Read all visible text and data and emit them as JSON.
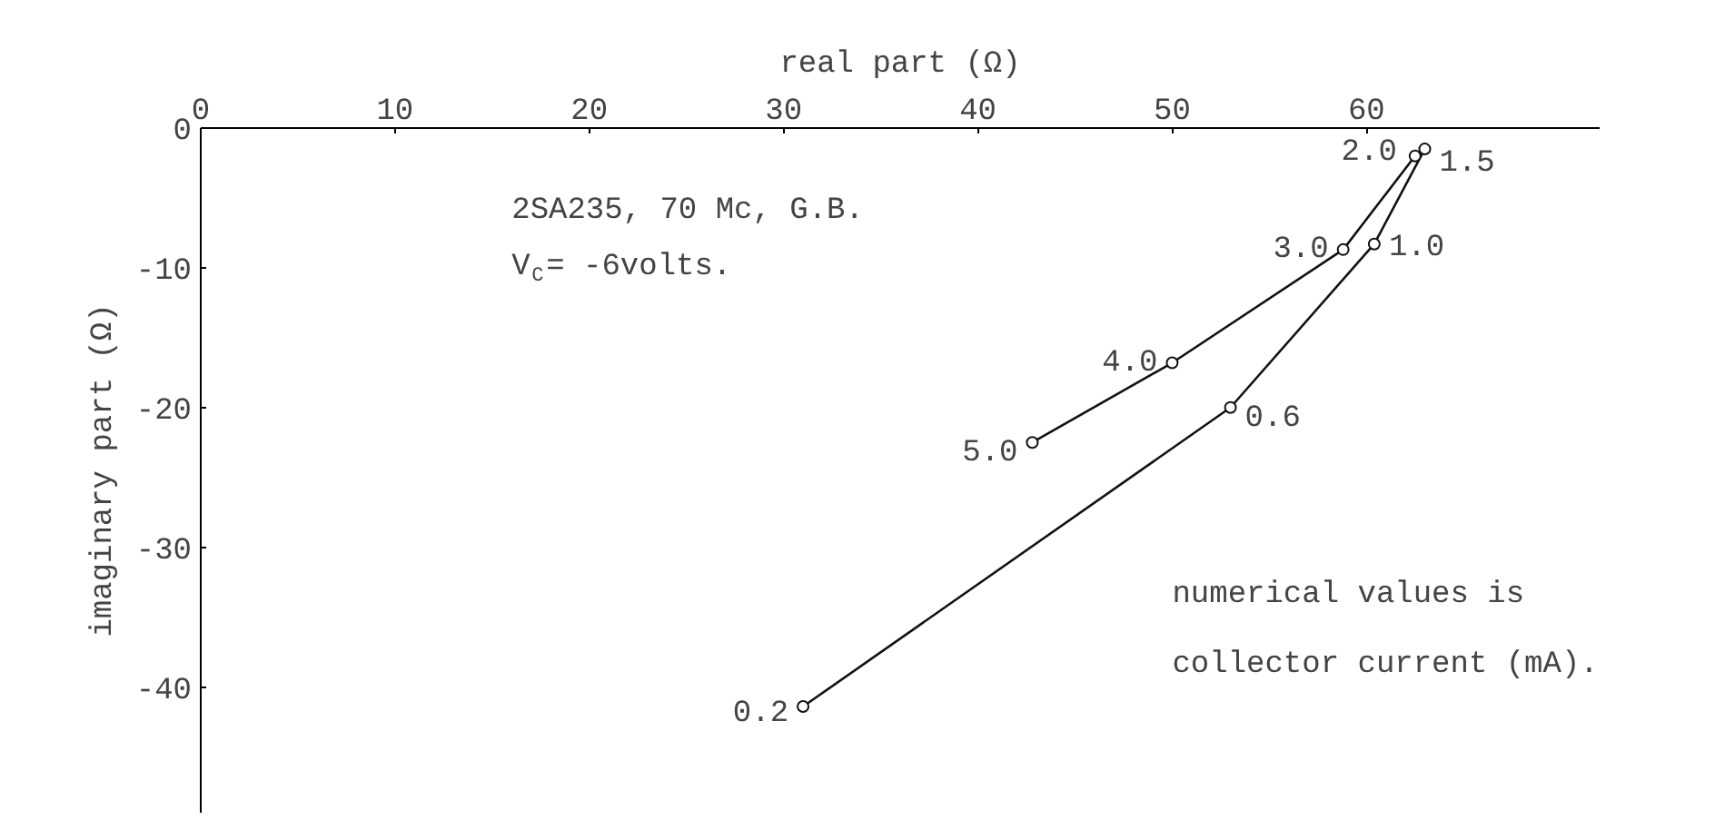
{
  "chart_data": {
    "type": "line",
    "xlabel": "real part (Ω)",
    "ylabel": "imaginary part (Ω)",
    "xlim": [
      0,
      72
    ],
    "xticks": [
      0,
      10,
      20,
      30,
      40,
      50,
      60
    ],
    "ylim": [
      -49,
      0
    ],
    "yticks": [
      0,
      -10,
      -20,
      -30,
      -40
    ],
    "marker": "circle",
    "line_style": "solid",
    "grid": false,
    "series": [
      {
        "color": "#111111",
        "x": [
          31,
          53,
          60.4,
          63
        ],
        "values": [
          -41.4,
          -20,
          -8.3,
          -1.5
        ]
      },
      {
        "color": "#111111",
        "x": [
          42.8,
          50,
          58.8,
          62.5
        ],
        "values": [
          -22.5,
          -16.8,
          -8.7,
          -2
        ]
      }
    ],
    "annotations": [
      "2SA235, 70 Mc, G.B.",
      "V$_{C}$= -6volts.",
      "numerical values is",
      "collector current (mA).",
      {
        "text": "0.2",
        "x": 31,
        "y": -41.4
      },
      {
        "text": "0.6",
        "x": 53,
        "y": -20
      },
      {
        "text": "1.0",
        "x": 60.4,
        "y": -8.3
      },
      {
        "text": "1.5",
        "x": 63,
        "y": -1.5
      },
      {
        "text": "5.0",
        "x": 42.8,
        "y": -22.5
      },
      {
        "text": "4.0",
        "x": 50,
        "y": -16.8
      },
      {
        "text": "3.0",
        "x": 58.8,
        "y": -8.7
      },
      {
        "text": "2.0",
        "x": 62.5,
        "y": -2
      }
    ]
  }
}
